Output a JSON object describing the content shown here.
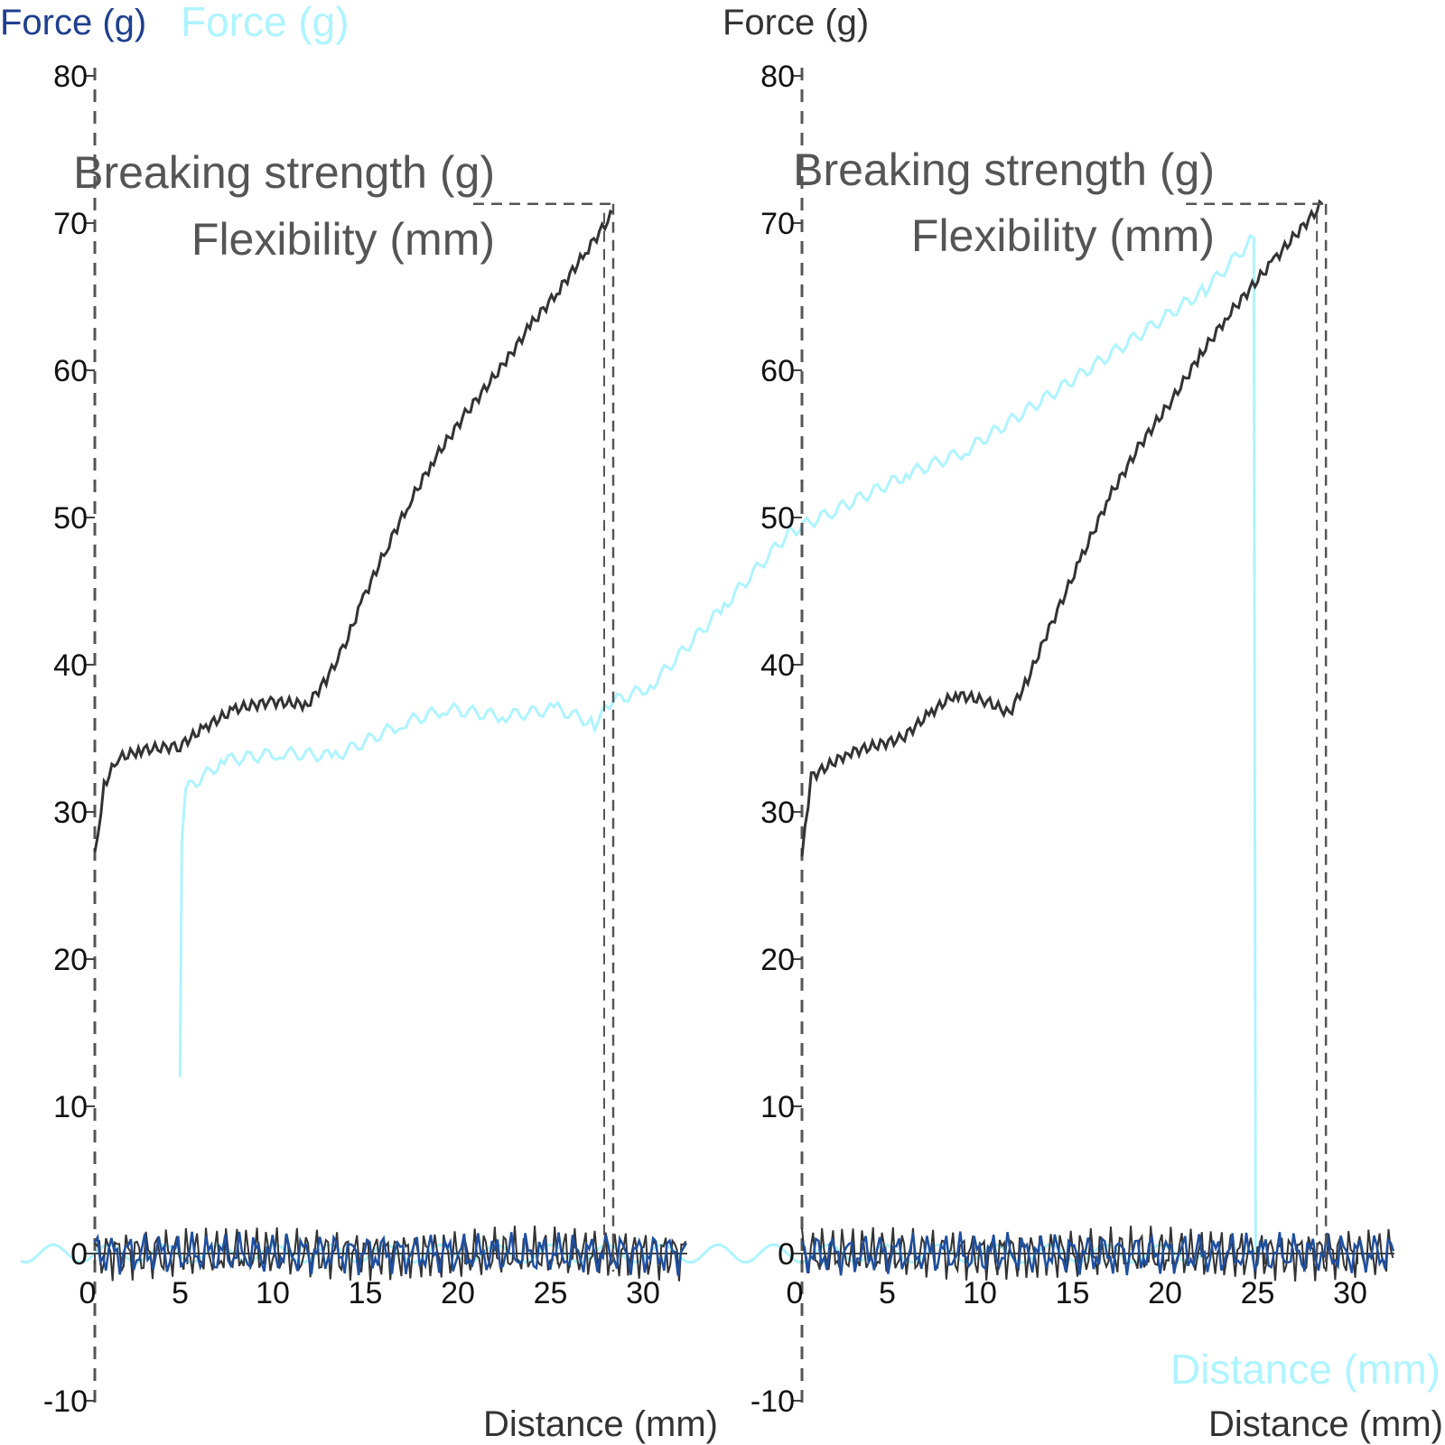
{
  "chart_data": [
    {
      "type": "line",
      "panel": "left",
      "ylabel": "Force (g)",
      "xlabel": "Distance (mm)",
      "xlim": [
        0,
        32
      ],
      "ylim": [
        -10,
        80
      ],
      "xticks": [
        "0",
        "5",
        "10",
        "15",
        "20",
        "25",
        "30"
      ],
      "yticks": [
        "80",
        "70",
        "60",
        "50",
        "40",
        "30",
        "20",
        "10",
        "0",
        "-10"
      ],
      "annotations": [
        "Breaking strength (g)",
        "Flexibility (mm)"
      ],
      "breaking_strength": 71.3,
      "flexibility": 28.0,
      "series": [
        {
          "color": "#333333",
          "x": [
            0,
            0.5,
            1.2,
            2.5,
            4.6,
            6,
            7.6,
            9.5,
            11.5,
            12.5,
            13.4,
            14.5,
            15.9,
            17,
            18.3,
            20,
            22.2,
            23.5,
            25.1,
            26.5,
            28
          ],
          "y": [
            26.9,
            31.8,
            33.6,
            34.2,
            34.5,
            35.8,
            37,
            37.5,
            37.3,
            39,
            41,
            44.5,
            48.3,
            51,
            53.9,
            57,
            60.6,
            63,
            65.5,
            68,
            70.7
          ]
        },
        {
          "color": "#1f4fa0",
          "x": [
            0,
            4,
            8,
            12,
            16,
            20,
            24,
            28,
            32
          ],
          "y": [
            0,
            0.3,
            -0.2,
            0.4,
            0,
            -0.3,
            0.2,
            0,
            -0.4
          ]
        }
      ]
    },
    {
      "type": "line",
      "panel": "right",
      "ylabel": "Force (g)",
      "xlabel": "Distance (mm)",
      "xlim": [
        0,
        32
      ],
      "ylim": [
        -10,
        80
      ],
      "xticks": [
        "0",
        "5",
        "10",
        "15",
        "20",
        "25",
        "30"
      ],
      "yticks": [
        "80",
        "70",
        "60",
        "50",
        "40",
        "30",
        "20",
        "10",
        "0",
        "-10"
      ],
      "annotations": [
        "Breaking strength (g)",
        "Flexibility (mm)"
      ],
      "breaking_strength": 71.3,
      "flexibility": 28.3,
      "series": [
        {
          "color": "#333333",
          "x": [
            0,
            0.5,
            2.5,
            5.4,
            7,
            8.3,
            10,
            11.2,
            12.2,
            13.2,
            15,
            16.6,
            18.3,
            20,
            21.5,
            23,
            25.5,
            28.1
          ],
          "y": [
            26.9,
            32.4,
            34,
            35,
            36.8,
            38,
            37.5,
            36.7,
            39,
            42,
            47,
            51.4,
            55,
            58,
            61,
            63.7,
            67.5,
            71.3
          ]
        },
        {
          "color": "#1f4fa0",
          "x": [
            0,
            4,
            8,
            12,
            16,
            20,
            24,
            28,
            32
          ],
          "y": [
            0,
            -0.3,
            0.3,
            0,
            -0.2,
            0.4,
            0,
            -0.3,
            0.2
          ]
        }
      ]
    },
    {
      "type": "line",
      "panel": "overlay",
      "ylabel": "Force (g)",
      "xlabel": "Distance (mm)",
      "color": "#aef4ff",
      "series": [
        {
          "color": "#aef4ff",
          "x": [
            4.6,
            4.7,
            4.9,
            7,
            10,
            13,
            16.6,
            19,
            22,
            25,
            27,
            28,
            30,
            34,
            37.5,
            40,
            44,
            47,
            53,
            60,
            62.6,
            62.7
          ],
          "y": [
            120,
            280,
            315,
            335,
            340,
            338,
            360,
            370,
            365,
            370,
            360,
            375,
            385,
            440,
            490,
            505,
            530,
            545,
            595,
            655,
            690,
            0
          ]
        }
      ]
    }
  ]
}
